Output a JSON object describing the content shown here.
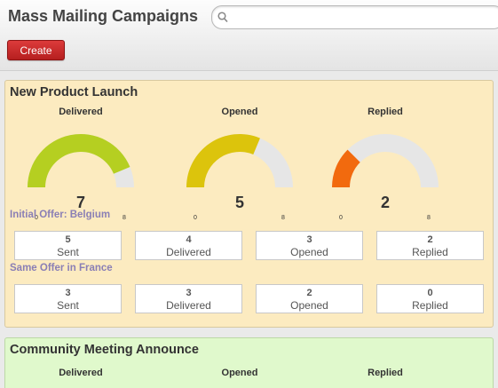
{
  "header": {
    "title": "Mass Mailing Campaigns",
    "search_placeholder": "",
    "create_label": "Create"
  },
  "colors": {
    "create_button": "#c62828",
    "card_1_background": "#fcebc0",
    "card_2_background": "#e0f9cc",
    "gauge_track": "#e6e6e6",
    "gauge_delivered": "#b5cf21",
    "gauge_opened": "#dcc40c",
    "gauge_replied": "#f26a0e",
    "offer_title": "#8a7fb5"
  },
  "campaigns": [
    {
      "name": "New Product Launch",
      "gauges": [
        {
          "label": "Delivered",
          "value": 7,
          "min": "0",
          "max": "8",
          "color": "#b5cf21"
        },
        {
          "label": "Opened",
          "value": 5,
          "min": "0",
          "max": "8",
          "color": "#dcc40c"
        },
        {
          "label": "Replied",
          "value": 2,
          "min": "0",
          "max": "8",
          "color": "#f26a0e"
        }
      ],
      "offers": [
        {
          "name": "Initial Offer: Belgium",
          "stats": [
            {
              "value": "5",
              "label": "Sent"
            },
            {
              "value": "4",
              "label": "Delivered"
            },
            {
              "value": "3",
              "label": "Opened"
            },
            {
              "value": "2",
              "label": "Replied"
            }
          ]
        },
        {
          "name": "Same Offer in France",
          "stats": [
            {
              "value": "3",
              "label": "Sent"
            },
            {
              "value": "3",
              "label": "Delivered"
            },
            {
              "value": "2",
              "label": "Opened"
            },
            {
              "value": "0",
              "label": "Replied"
            }
          ]
        }
      ]
    },
    {
      "name": "Community Meeting Announce",
      "gauge_labels": [
        "Delivered",
        "Opened",
        "Replied"
      ]
    }
  ]
}
